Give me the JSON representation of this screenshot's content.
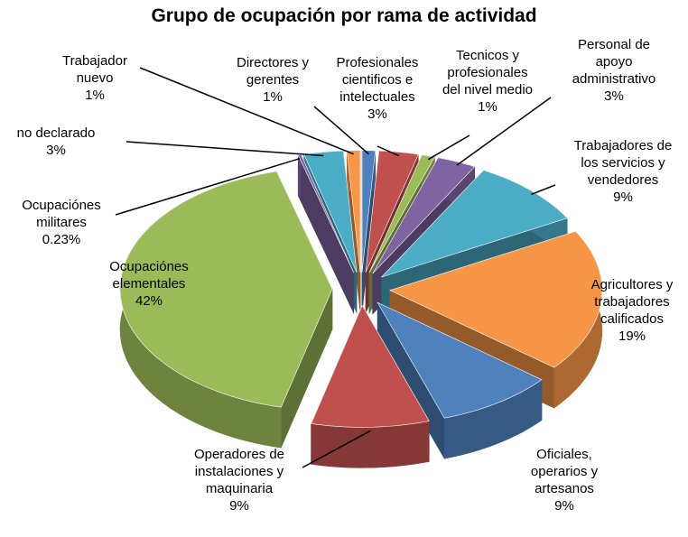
{
  "chart_data": {
    "type": "pie",
    "title": "Grupo de ocupación por rama de actividad",
    "categories": [
      "Directores y gerentes",
      "Profesionales cientificos e intelectuales",
      "Tecnicos y profesionales del nivel medio",
      "Personal de apoyo administrativo",
      "Trabajadores de los servicios y vendedores",
      "Agricultores y trabajadores calificados",
      "Oficiales, operarios y artesanos",
      "Operadores de instalaciones y maquinaria",
      "Ocupaciónes elementales",
      "Ocupaciónes militares",
      "no declarado",
      "Trabajador nuevo"
    ],
    "values": [
      1,
      3,
      1,
      3,
      9,
      19,
      9,
      9,
      42,
      0.23,
      3,
      1
    ],
    "value_labels": [
      "1%",
      "3%",
      "1%",
      "3%",
      "9%",
      "19%",
      "9%",
      "9%",
      "42%",
      "0.23%",
      "3%",
      "1%"
    ],
    "colors": [
      "#4f81bd",
      "#c0504d",
      "#9bbb59",
      "#8064a2",
      "#4bacc6",
      "#f79646",
      "#4f81bd",
      "#c0504d",
      "#9bbb59",
      "#8064a2",
      "#4bacc6",
      "#f79646"
    ]
  }
}
